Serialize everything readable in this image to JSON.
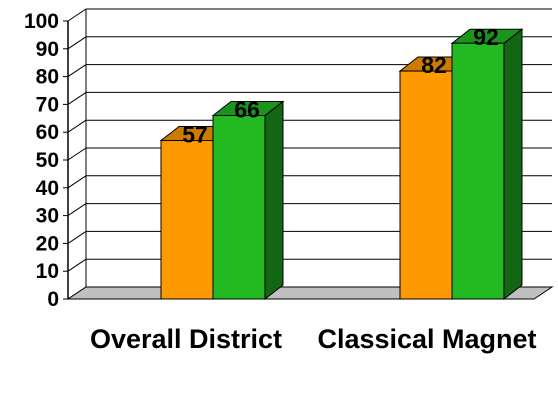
{
  "chart_data": {
    "type": "bar",
    "style": "3d-clustered-column",
    "categories": [
      "Overall District",
      "Classical Magnet"
    ],
    "series": [
      {
        "values": [
          57,
          82
        ],
        "color": "#ff9900"
      },
      {
        "values": [
          66,
          92
        ],
        "color": "#22b922"
      }
    ],
    "ylim": [
      0,
      100
    ],
    "yticks": [
      0,
      10,
      20,
      30,
      40,
      50,
      60,
      70,
      80,
      90,
      100
    ],
    "grid": true,
    "legend": "none",
    "title": "",
    "xlabel": "",
    "ylabel": ""
  }
}
